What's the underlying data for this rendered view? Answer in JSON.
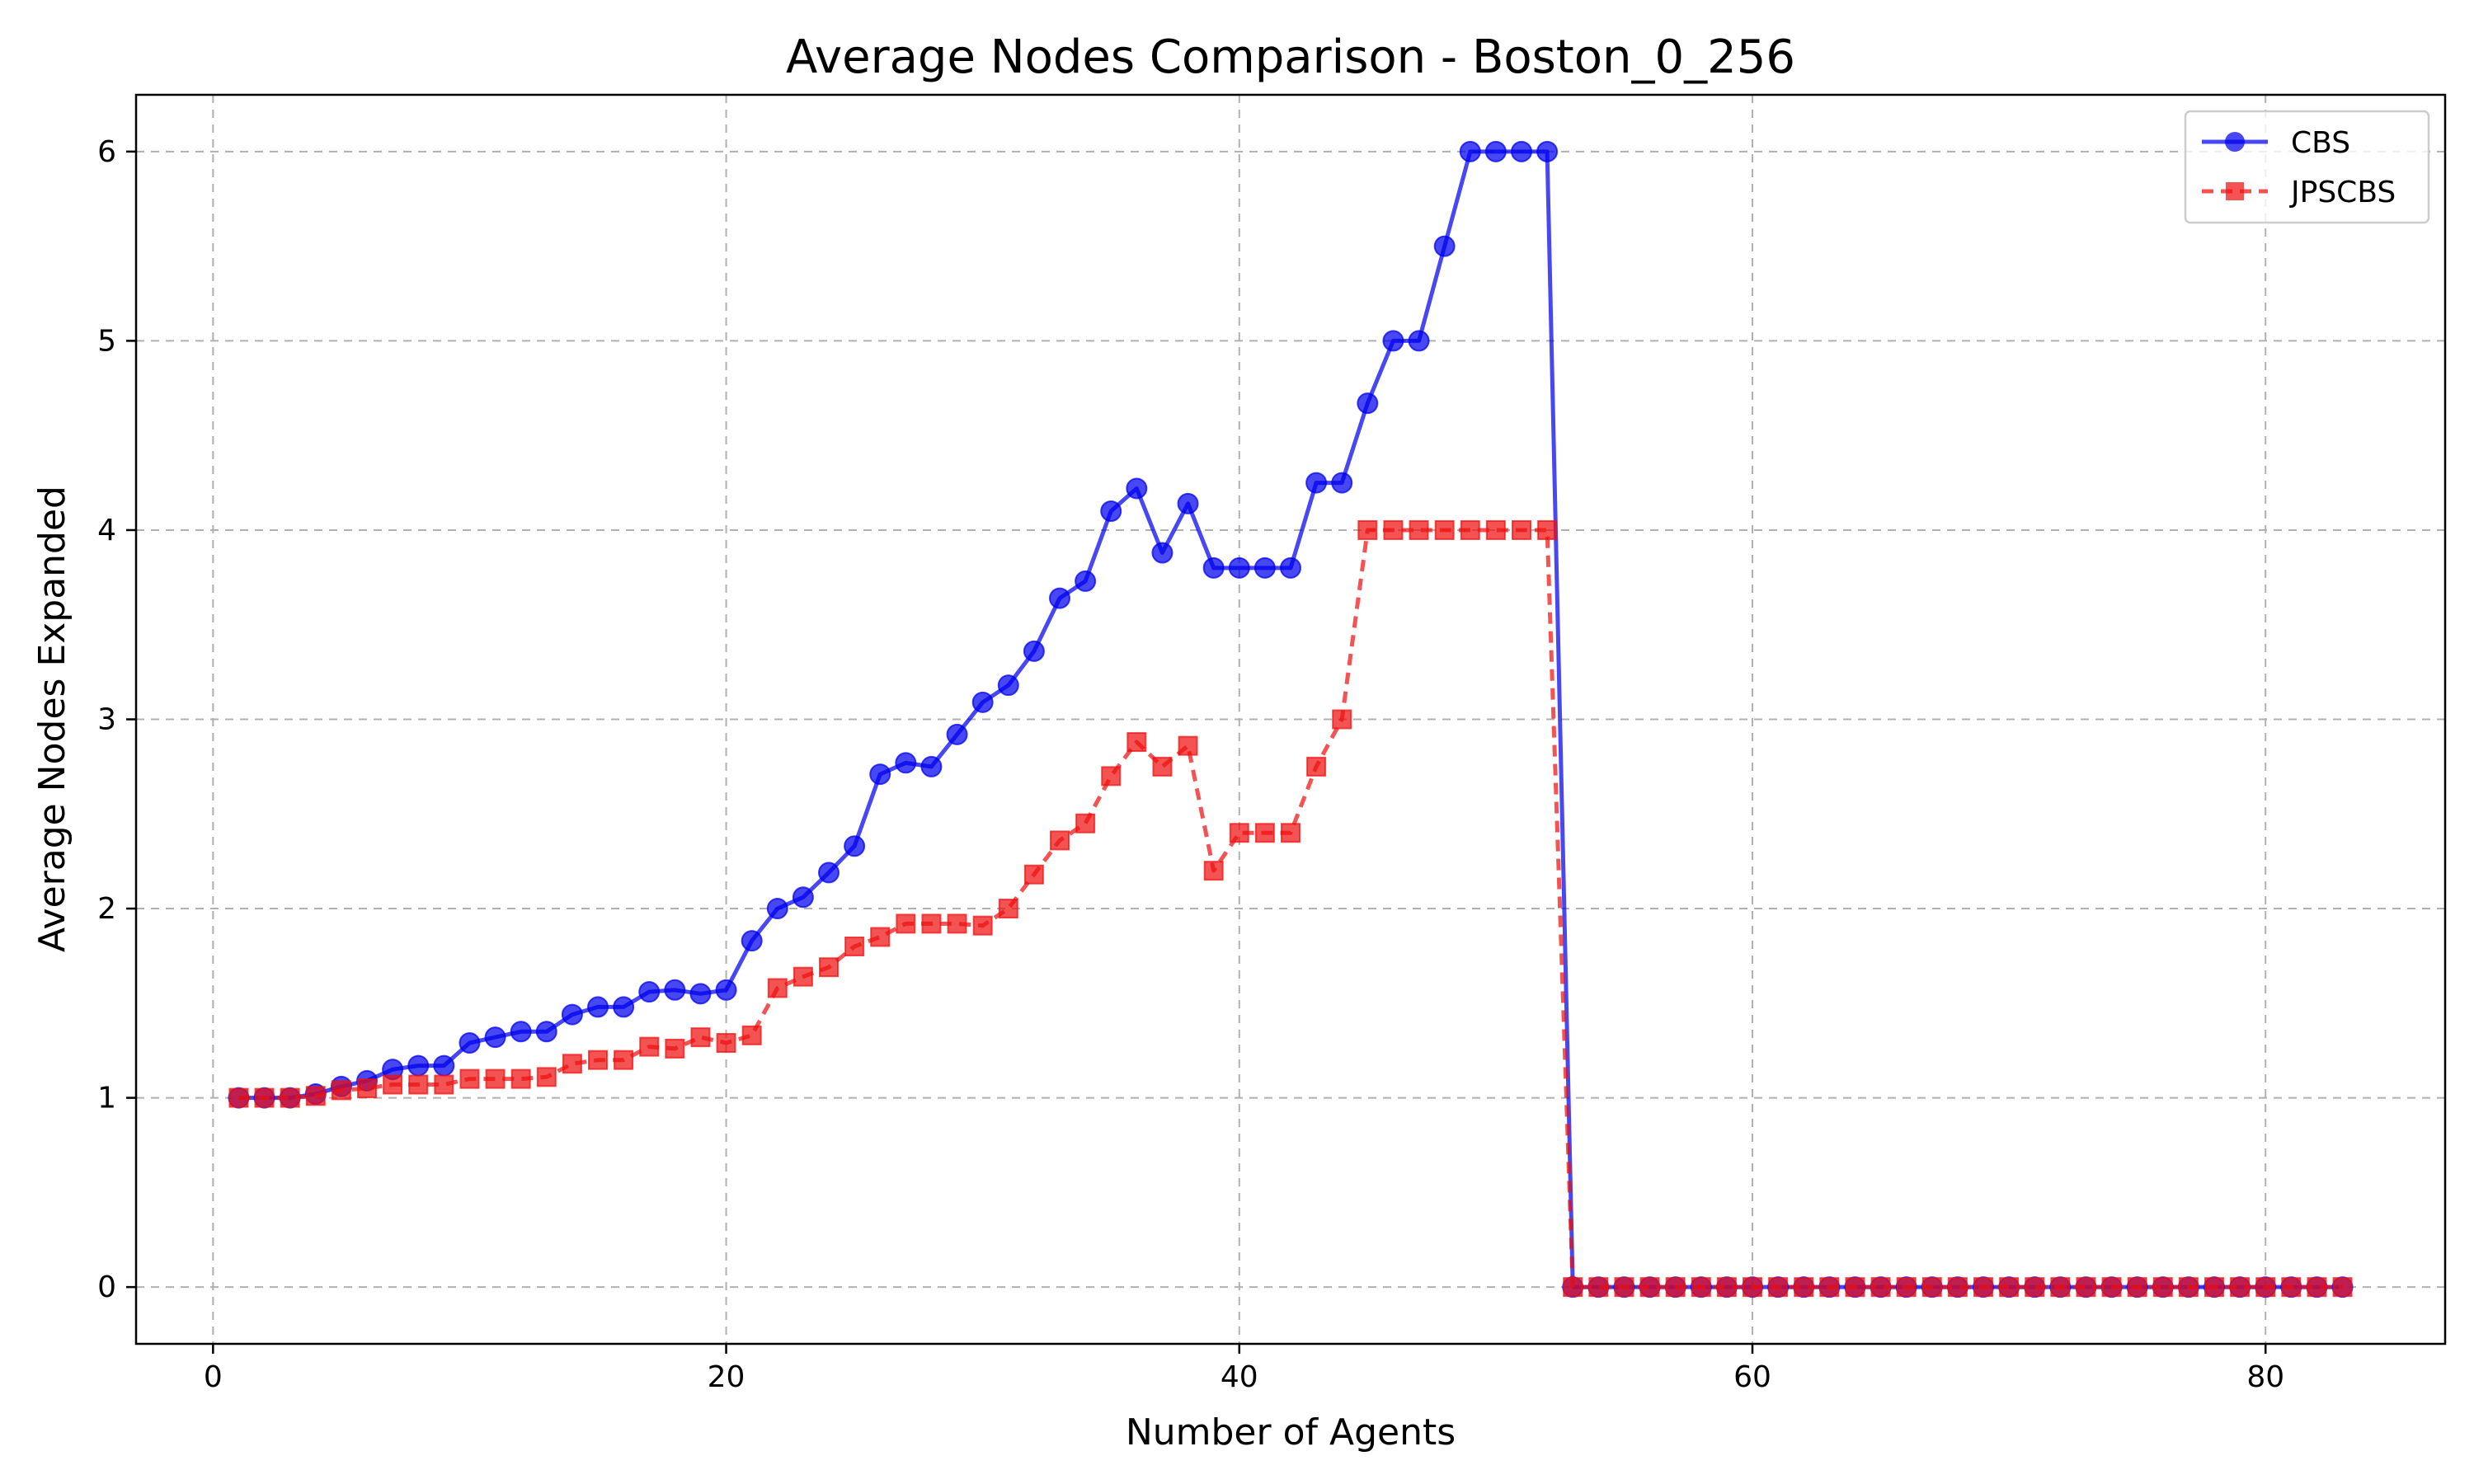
{
  "chart_data": {
    "type": "line",
    "title": "Average Nodes Comparison - Boston_0_256",
    "xlabel": "Number of Agents",
    "ylabel": "Average Nodes Expanded",
    "xlim": [
      -3,
      87
    ],
    "ylim": [
      -0.3,
      6.3
    ],
    "xticks": [
      0,
      20,
      40,
      60,
      80
    ],
    "yticks": [
      0,
      1,
      2,
      3,
      4,
      5,
      6
    ],
    "grid": true,
    "legend_position": "top-right",
    "x": [
      1,
      2,
      3,
      4,
      5,
      6,
      7,
      8,
      9,
      10,
      11,
      12,
      13,
      14,
      15,
      16,
      17,
      18,
      19,
      20,
      21,
      22,
      23,
      24,
      25,
      26,
      27,
      28,
      29,
      30,
      31,
      32,
      33,
      34,
      35,
      36,
      37,
      38,
      39,
      40,
      41,
      42,
      43,
      44,
      45,
      46,
      47,
      48,
      49,
      50,
      51,
      52,
      53,
      54,
      55,
      56,
      57,
      58,
      59,
      60,
      61,
      62,
      63,
      64,
      65,
      66,
      67,
      68,
      69,
      70,
      71,
      72,
      73,
      74,
      75,
      76,
      77,
      78,
      79,
      80,
      81,
      82,
      83
    ],
    "series": [
      {
        "name": "CBS",
        "color": "#0000ee",
        "marker": "circle",
        "linestyle": "solid",
        "values": [
          1.0,
          1.0,
          1.0,
          1.02,
          1.06,
          1.09,
          1.15,
          1.17,
          1.17,
          1.29,
          1.32,
          1.35,
          1.35,
          1.44,
          1.48,
          1.48,
          1.56,
          1.57,
          1.55,
          1.57,
          1.83,
          2.0,
          2.06,
          2.19,
          2.33,
          2.71,
          2.77,
          2.75,
          2.92,
          3.09,
          3.18,
          3.36,
          3.64,
          3.73,
          4.1,
          4.22,
          3.88,
          4.14,
          3.8,
          3.8,
          3.8,
          3.8,
          4.25,
          4.25,
          4.67,
          5.0,
          5.0,
          5.5,
          6.0,
          6.0,
          6.0,
          6.0,
          0,
          0,
          0,
          0,
          0,
          0,
          0,
          0,
          0,
          0,
          0,
          0,
          0,
          0,
          0,
          0,
          0,
          0,
          0,
          0,
          0,
          0,
          0,
          0,
          0,
          0,
          0,
          0,
          0,
          0,
          0
        ]
      },
      {
        "name": "JPSCBS",
        "color": "#ee1111",
        "marker": "square",
        "linestyle": "dashed",
        "values": [
          1.0,
          1.0,
          1.0,
          1.01,
          1.04,
          1.05,
          1.07,
          1.07,
          1.07,
          1.1,
          1.1,
          1.1,
          1.11,
          1.18,
          1.2,
          1.2,
          1.27,
          1.26,
          1.32,
          1.29,
          1.33,
          1.58,
          1.64,
          1.69,
          1.8,
          1.85,
          1.92,
          1.92,
          1.92,
          1.91,
          2.0,
          2.18,
          2.36,
          2.45,
          2.7,
          2.88,
          2.75,
          2.86,
          2.2,
          2.4,
          2.4,
          2.4,
          2.75,
          3.0,
          4.0,
          4.0,
          4.0,
          4.0,
          4.0,
          4.0,
          4.0,
          4.0,
          0,
          0,
          0,
          0,
          0,
          0,
          0,
          0,
          0,
          0,
          0,
          0,
          0,
          0,
          0,
          0,
          0,
          0,
          0,
          0,
          0,
          0,
          0,
          0,
          0,
          0,
          0,
          0,
          0,
          0,
          0
        ]
      }
    ]
  }
}
